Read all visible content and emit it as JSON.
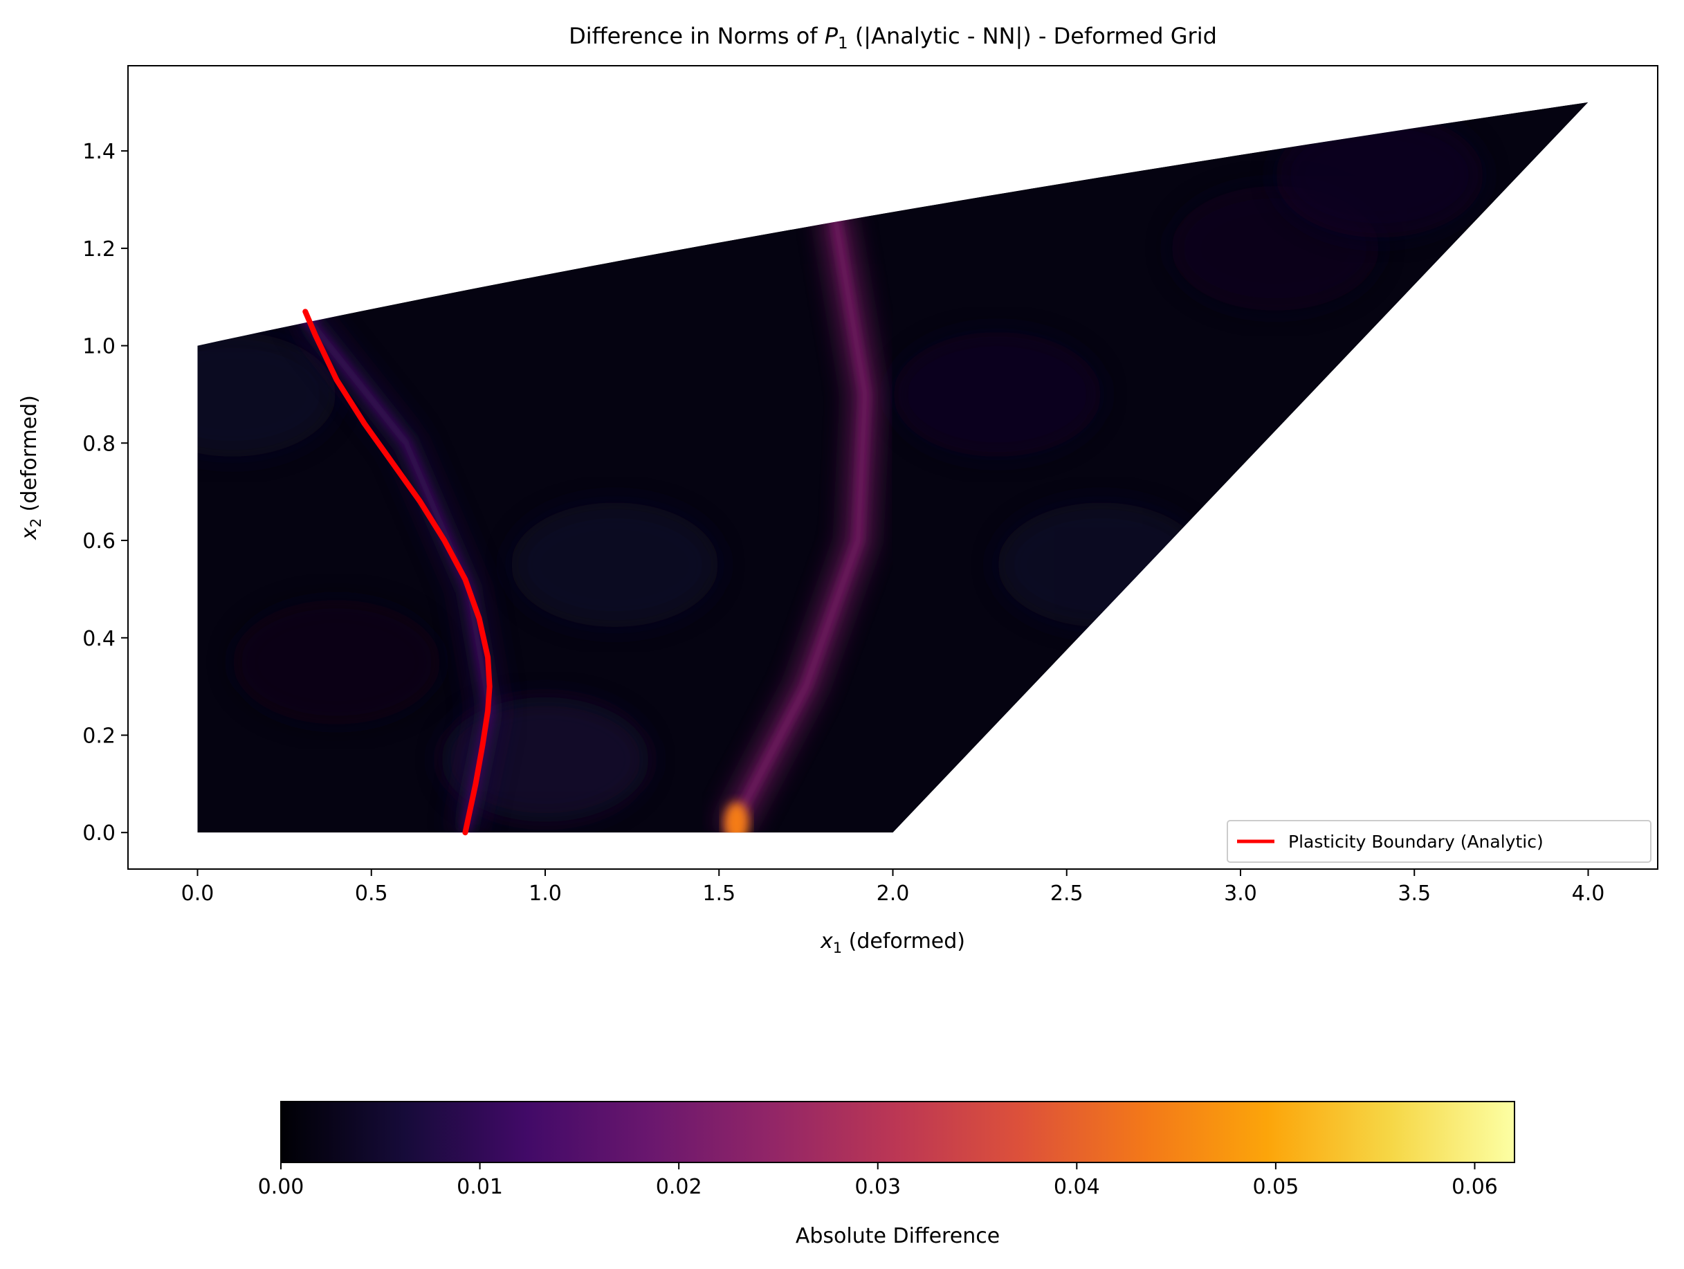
{
  "chart_data": {
    "type": "heatmap",
    "title": {
      "prefix": "Difference in Norms of ",
      "symbol": "P",
      "subscript": "1",
      "suffix": " (|Analytic - NN|) - Deformed Grid"
    },
    "xlabel": {
      "symbol": "x",
      "subscript": "1",
      "text": " (deformed)"
    },
    "ylabel": {
      "symbol": "x",
      "subscript": "2",
      "text": " (deformed)"
    },
    "xlim": [
      -0.2,
      4.2
    ],
    "ylim": [
      -0.075,
      1.575
    ],
    "xticks": [
      0.0,
      0.5,
      1.0,
      1.5,
      2.0,
      2.5,
      3.0,
      3.5,
      4.0
    ],
    "xtick_labels": [
      "0.0",
      "0.5",
      "1.0",
      "1.5",
      "2.0",
      "2.5",
      "3.0",
      "3.5",
      "4.0"
    ],
    "yticks": [
      0.0,
      0.2,
      0.4,
      0.6,
      0.8,
      1.0,
      1.2,
      1.4
    ],
    "ytick_labels": [
      "0.0",
      "0.2",
      "0.4",
      "0.6",
      "0.8",
      "1.0",
      "1.2",
      "1.4"
    ],
    "grid": false,
    "colormap": "inferno",
    "colorbar": {
      "label": "Absolute Difference",
      "range": [
        0.0,
        0.062
      ],
      "ticks": [
        0.0,
        0.01,
        0.02,
        0.03,
        0.04,
        0.05,
        0.06
      ],
      "tick_labels": [
        "0.00",
        "0.01",
        "0.02",
        "0.03",
        "0.04",
        "0.05",
        "0.06"
      ],
      "orientation": "horizontal",
      "placement": "bottom"
    },
    "domain": {
      "description_points": "deformed quadrilateral region",
      "vertices": [
        [
          0.0,
          0.0
        ],
        [
          2.0,
          0.0
        ],
        [
          4.0,
          1.5
        ],
        [
          0.0,
          1.0
        ]
      ],
      "top_edge_sqrt_curve": true
    },
    "field_features": [
      {
        "kind": "band",
        "points": [
          [
            1.53,
            0.0
          ],
          [
            1.75,
            0.3
          ],
          [
            1.9,
            0.6
          ],
          [
            1.92,
            0.9
          ],
          [
            1.83,
            1.28
          ]
        ],
        "peak_value": 0.044,
        "mid_value": 0.022
      },
      {
        "kind": "band",
        "points": [
          [
            0.3,
            1.07
          ],
          [
            0.6,
            0.8
          ],
          [
            0.78,
            0.5
          ],
          [
            0.84,
            0.25
          ],
          [
            0.77,
            0.0
          ]
        ],
        "peak_value": 0.014
      }
    ],
    "series": [
      {
        "name": "Plasticity Boundary (Analytic)",
        "color": "#ff0000",
        "x": [
          0.77,
          0.8,
          0.82,
          0.835,
          0.84,
          0.835,
          0.81,
          0.77,
          0.71,
          0.64,
          0.56,
          0.48,
          0.4,
          0.34,
          0.31
        ],
        "y": [
          0.0,
          0.1,
          0.18,
          0.25,
          0.3,
          0.36,
          0.44,
          0.52,
          0.6,
          0.68,
          0.76,
          0.84,
          0.93,
          1.02,
          1.07
        ]
      }
    ],
    "legend": {
      "placement": "bottom-right"
    }
  }
}
